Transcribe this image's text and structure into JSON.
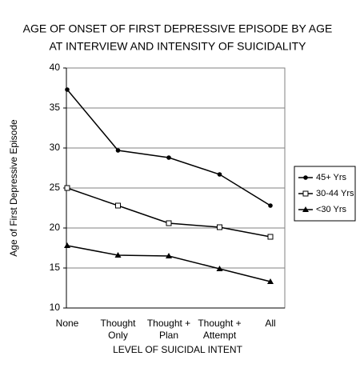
{
  "chart_data": {
    "type": "line",
    "title": [
      "AGE OF ONSET OF FIRST DEPRESSIVE EPISODE BY AGE",
      "AT INTERVIEW AND INTENSITY OF SUICIDALITY"
    ],
    "x_label": "LEVEL OF SUICIDAL INTENT",
    "y_label": "Age of First Depressive Episode",
    "categories": [
      "None",
      "Thought\nOnly",
      "Thought +\nPlan",
      "Thought +\nAttempt",
      "All"
    ],
    "series": [
      {
        "name": "45+ Yrs",
        "color": "#000000",
        "marker": "circle",
        "values": [
          37.3,
          29.7,
          28.8,
          26.7,
          22.8
        ]
      },
      {
        "name": "30-44 Yrs",
        "color": "#000000",
        "marker": "square-open",
        "values": [
          25.0,
          22.8,
          20.6,
          20.1,
          18.9
        ]
      },
      {
        "name": "<30 Yrs",
        "color": "#000000",
        "marker": "triangle",
        "values": [
          17.8,
          16.6,
          16.5,
          14.9,
          13.3
        ]
      }
    ],
    "ylim": [
      10,
      40
    ],
    "yticks": [
      10,
      15,
      20,
      25,
      30,
      35,
      40
    ],
    "grid": true,
    "legend": "right"
  }
}
